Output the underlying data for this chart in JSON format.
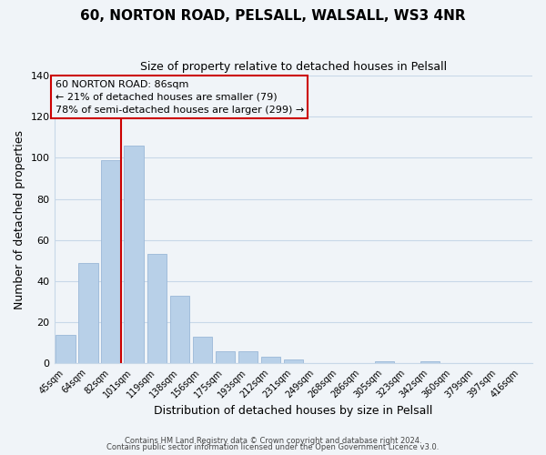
{
  "title": "60, NORTON ROAD, PELSALL, WALSALL, WS3 4NR",
  "subtitle": "Size of property relative to detached houses in Pelsall",
  "xlabel": "Distribution of detached houses by size in Pelsall",
  "ylabel": "Number of detached properties",
  "bar_values": [
    14,
    49,
    99,
    106,
    53,
    33,
    13,
    6,
    6,
    3,
    2,
    0,
    0,
    0,
    1,
    0,
    1,
    0,
    0,
    0,
    0
  ],
  "bin_labels": [
    "45sqm",
    "64sqm",
    "82sqm",
    "101sqm",
    "119sqm",
    "138sqm",
    "156sqm",
    "175sqm",
    "193sqm",
    "212sqm",
    "231sqm",
    "249sqm",
    "268sqm",
    "286sqm",
    "305sqm",
    "323sqm",
    "342sqm",
    "360sqm",
    "379sqm",
    "397sqm",
    "416sqm"
  ],
  "bar_color": "#b8d0e8",
  "bar_edge_color": "#9ab8d8",
  "vline_x_index": 2,
  "vline_color": "#cc0000",
  "ylim": [
    0,
    140
  ],
  "yticks": [
    0,
    20,
    40,
    60,
    80,
    100,
    120,
    140
  ],
  "annotation_title": "60 NORTON ROAD: 86sqm",
  "annotation_line1": "← 21% of detached houses are smaller (79)",
  "annotation_line2": "78% of semi-detached houses are larger (299) →",
  "footer1": "Contains HM Land Registry data © Crown copyright and database right 2024.",
  "footer2": "Contains public sector information licensed under the Open Government Licence v3.0.",
  "background_color": "#f0f4f8",
  "grid_color": "#c8d8e8",
  "box_facecolor": "#f0f4f8",
  "box_edge_color": "#cc0000"
}
